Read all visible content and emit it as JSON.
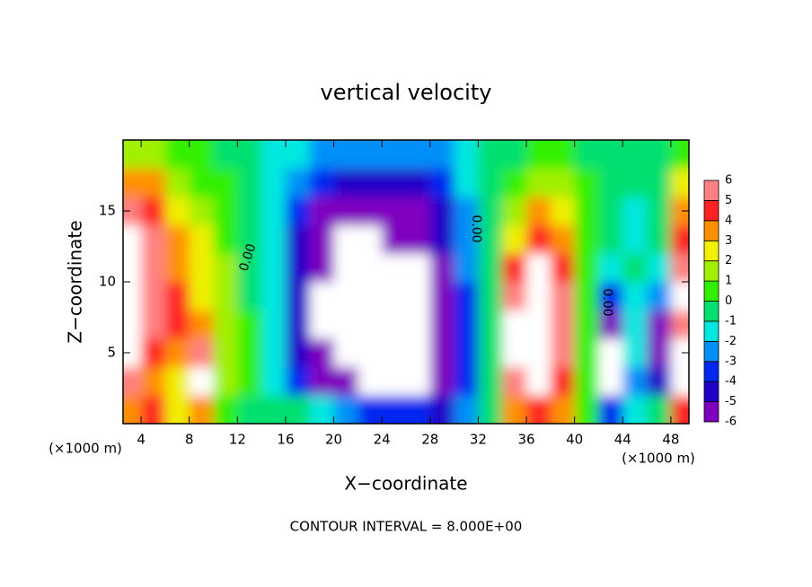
{
  "chart_data": {
    "type": "heatmap",
    "title": "vertical velocity",
    "x_label": "X−coordinate",
    "y_label": "Z−coordinate",
    "x_unit_label": "(×1000 m)",
    "footer": "CONTOUR INTERVAL = 8.000E+00",
    "annotations": [
      "0.00",
      "0.00",
      "0.00"
    ],
    "x": [
      3,
      5,
      7,
      9,
      11,
      13,
      15,
      17,
      19,
      21,
      23,
      25,
      27,
      29,
      31,
      33,
      35,
      37,
      39,
      41,
      43,
      45,
      47,
      49
    ],
    "y": [
      1,
      3,
      5,
      7,
      9,
      11,
      13,
      15,
      17,
      19
    ],
    "z": [
      [
        4,
        5,
        3,
        4,
        1,
        0,
        0,
        0,
        -1,
        -2,
        -3,
        -3,
        -3,
        -4,
        -2,
        0,
        4,
        5,
        4,
        1,
        -3,
        -1,
        0,
        5
      ],
      [
        6,
        4,
        3,
        7,
        2,
        1,
        -1,
        -3,
        -5,
        -6,
        -7,
        -7,
        -7,
        -5,
        -3,
        0,
        6,
        7,
        5,
        1,
        -7,
        -2,
        -4,
        7
      ],
      [
        7,
        5,
        4,
        6,
        2,
        1,
        -1,
        -4,
        -6,
        -7,
        -7,
        -8,
        -7,
        -6,
        -3,
        0,
        7,
        8,
        6,
        1,
        -7,
        -1,
        -5,
        7
      ],
      [
        7,
        6,
        5,
        4,
        2,
        1,
        -1,
        -4,
        -7,
        -7,
        -8,
        -8,
        -7,
        -6,
        -3,
        0,
        7,
        8,
        6,
        1,
        -5,
        -1,
        -5,
        6
      ],
      [
        7,
        6,
        5,
        3,
        2,
        0,
        -1,
        -4,
        -7,
        -7,
        -8,
        -8,
        -7,
        -6,
        -3,
        0,
        6,
        8,
        6,
        1,
        -3,
        -1,
        -2,
        7
      ],
      [
        7,
        6,
        4,
        3,
        2,
        0,
        -1,
        -4,
        -6,
        -8,
        -8,
        -8,
        -7,
        -5,
        -2,
        0,
        5,
        7,
        5,
        1,
        -1,
        0,
        -1,
        6
      ],
      [
        7,
        6,
        4,
        3,
        1,
        0,
        -1,
        -4,
        -6,
        -7,
        -7,
        -6,
        -5,
        -4,
        -2,
        0,
        3,
        5,
        4,
        1,
        0,
        -1,
        0,
        5
      ],
      [
        6,
        5,
        3,
        2,
        1,
        0,
        -1,
        -3,
        -5,
        -5,
        -5,
        -5,
        -5,
        -4,
        -2,
        0,
        2,
        4,
        3,
        1,
        0,
        -1,
        0,
        4
      ],
      [
        4,
        4,
        2,
        1,
        1,
        0,
        -1,
        -2,
        -3,
        -4,
        -4,
        -4,
        -4,
        -3,
        -1,
        0,
        1,
        2,
        2,
        1,
        0,
        0,
        0,
        3
      ],
      [
        2,
        2,
        1,
        1,
        0,
        0,
        -1,
        -1,
        -2,
        -2,
        -2,
        -2,
        -2,
        -2,
        -1,
        0,
        0,
        1,
        1,
        0,
        0,
        0,
        0,
        1
      ]
    ],
    "xlim": [
      2.5,
      49.5
    ],
    "ylim": [
      0,
      20
    ],
    "xticks": [
      4,
      8,
      12,
      16,
      20,
      24,
      28,
      32,
      36,
      40,
      44,
      48
    ],
    "yticks": [
      5,
      10,
      15
    ],
    "colorbar_ticks": [
      -6,
      -5,
      -4,
      -3,
      -2,
      -1,
      0,
      1,
      2,
      3,
      4,
      5,
      6
    ],
    "colorbar_colors": [
      "#8000c0",
      "#2000c8",
      "#0028f0",
      "#0090f8",
      "#00e8e0",
      "#00e070",
      "#30f000",
      "#a0f000",
      "#f0f000",
      "#ff9000",
      "#ff2020",
      "#ff8080"
    ],
    "out_of_range_color": "#ffffff"
  }
}
